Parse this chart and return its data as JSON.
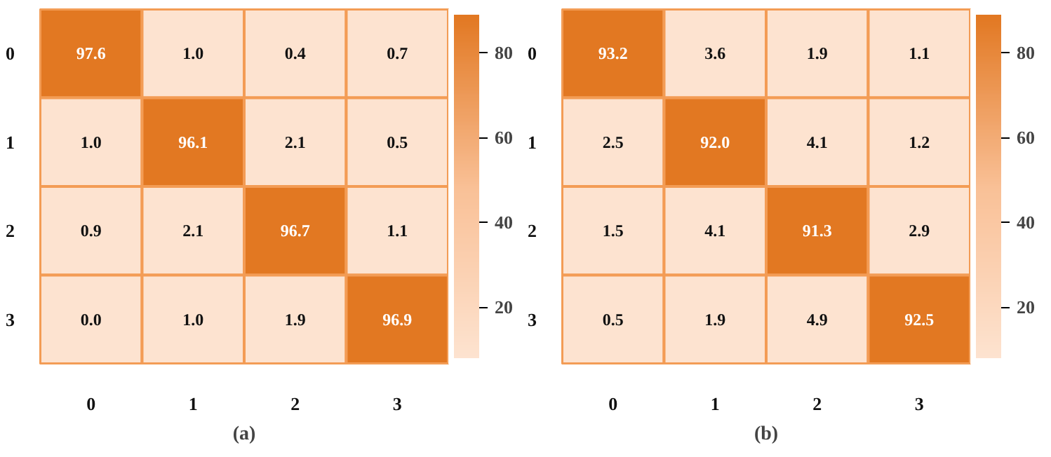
{
  "chart_data": [
    {
      "type": "heatmap",
      "title": "(a)",
      "categories": [
        "0",
        "1",
        "2",
        "3"
      ],
      "y_categories": [
        "0",
        "1",
        "2",
        "3"
      ],
      "cells": [
        [
          97.6,
          1.0,
          0.4,
          0.7
        ],
        [
          1.0,
          96.1,
          2.1,
          0.5
        ],
        [
          0.9,
          2.1,
          96.7,
          1.1
        ],
        [
          0.0,
          1.0,
          1.9,
          96.9
        ]
      ],
      "data_labels": true,
      "cell_labels": [
        [
          "97.6",
          "1.0",
          "0.4",
          "0.7"
        ],
        [
          "1.0",
          "96.1",
          "2.1",
          "0.5"
        ],
        [
          "0.9",
          "2.1",
          "96.7",
          "1.1"
        ],
        [
          "0.0",
          "1.0",
          "1.9",
          "96.9"
        ]
      ],
      "clim": [
        8,
        89
      ],
      "cticks": [
        20,
        40,
        60,
        80
      ],
      "colors": [
        "#fde3d0",
        "#f9c096",
        "#e27822"
      ]
    },
    {
      "type": "heatmap",
      "title": "(b)",
      "categories": [
        "0",
        "1",
        "2",
        "3"
      ],
      "y_categories": [
        "0",
        "1",
        "2",
        "3"
      ],
      "cells": [
        [
          93.2,
          3.6,
          1.9,
          1.1
        ],
        [
          2.5,
          92.0,
          4.1,
          1.2
        ],
        [
          1.5,
          4.1,
          91.3,
          2.9
        ],
        [
          0.5,
          1.9,
          4.9,
          92.5
        ]
      ],
      "data_labels": true,
      "cell_labels": [
        [
          "93.2",
          "3.6",
          "1.9",
          "1.1"
        ],
        [
          "2.5",
          "92.0",
          "4.1",
          "1.2"
        ],
        [
          "1.5",
          "4.1",
          "91.3",
          "2.9"
        ],
        [
          "0.5",
          "1.9",
          "4.9",
          "92.5"
        ]
      ],
      "clim": [
        8,
        89
      ],
      "cticks": [
        20,
        40,
        60,
        80
      ],
      "colors": [
        "#fde3d0",
        "#f9c096",
        "#e27822"
      ]
    }
  ]
}
